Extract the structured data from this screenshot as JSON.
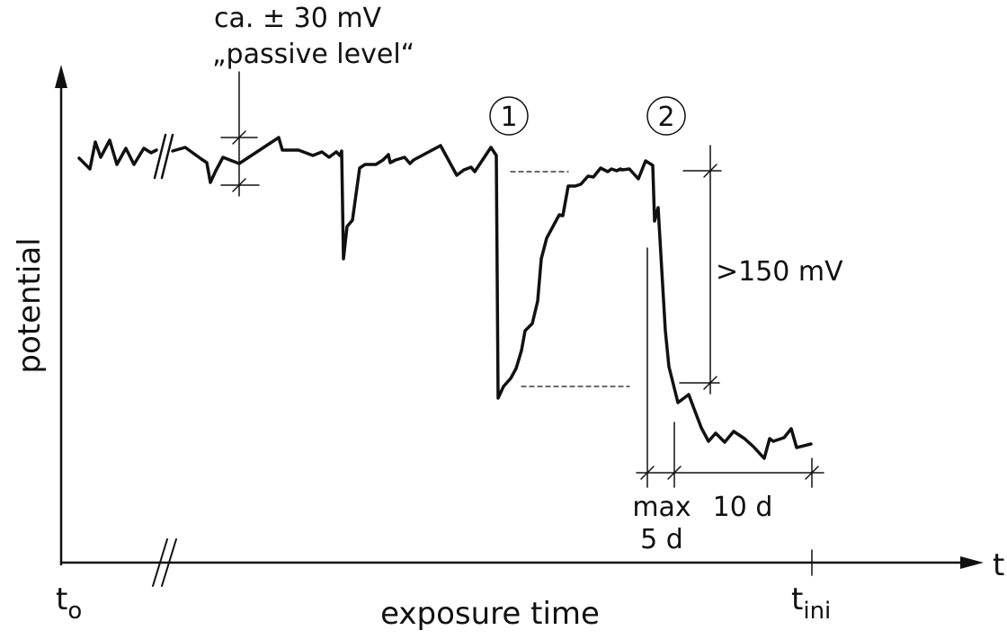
{
  "colors": {
    "line": "#111111",
    "background": "#ffffff"
  },
  "axes": {
    "y_label": "potential",
    "x_label": "exposure time",
    "x_end_symbol": "t",
    "origin": {
      "base": "t",
      "sub": "o"
    },
    "t_ini": {
      "base": "t",
      "sub": "ini"
    }
  },
  "annotations": {
    "passive_range": "ca. ± 30 mV",
    "passive_level": "„passive level“",
    "marker_1": "1",
    "marker_2": "2",
    "drop": ">150 mV",
    "max_text": "max",
    "max_days": "5 d",
    "ten_days": "10 d"
  }
}
